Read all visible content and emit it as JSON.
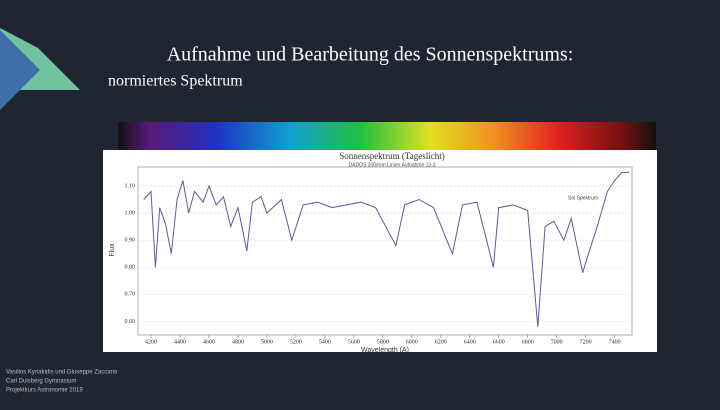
{
  "slide": {
    "title": "Aufnahme und Bearbeitung des Sonnenspektrums:",
    "subtitle": "normiertes Spektrum",
    "footer": [
      "Vasilios Kyriakidis und Giuseppe Zaccaria",
      "Carl Duisberg Gymnasium",
      "Projektkurs Astronomie 2019"
    ]
  },
  "chart_data": {
    "type": "line",
    "title": "Sonnenspektrum (Tageslicht)",
    "subtitle": "DADOS 300/mm Linien Aufnahme 13.3",
    "x_label": "Wavelength (A)",
    "y_label": "Flux",
    "annotation": "Sol Spektrum",
    "color": "#5a5aa0",
    "x": [
      4150,
      4200,
      4230,
      4260,
      4300,
      4340,
      4380,
      4420,
      4460,
      4500,
      4560,
      4600,
      4650,
      4700,
      4750,
      4800,
      4861,
      4900,
      4960,
      5000,
      5100,
      5172,
      5250,
      5350,
      5450,
      5550,
      5650,
      5750,
      5890,
      5950,
      6050,
      6150,
      6280,
      6350,
      6450,
      6563,
      6600,
      6700,
      6800,
      6870,
      6920,
      6980,
      7050,
      7100,
      7180,
      7220,
      7280,
      7350,
      7400,
      7450,
      7500
    ],
    "values": [
      1.05,
      1.08,
      0.8,
      1.02,
      0.96,
      0.85,
      1.05,
      1.12,
      1.0,
      1.08,
      1.04,
      1.1,
      1.03,
      1.06,
      0.95,
      1.02,
      0.86,
      1.04,
      1.06,
      1.0,
      1.05,
      0.9,
      1.03,
      1.04,
      1.02,
      1.03,
      1.04,
      1.02,
      0.88,
      1.03,
      1.05,
      1.02,
      0.85,
      1.03,
      1.04,
      0.8,
      1.02,
      1.03,
      1.01,
      0.58,
      0.95,
      0.97,
      0.9,
      0.98,
      0.78,
      0.85,
      0.95,
      1.08,
      1.12,
      1.15,
      1.15
    ],
    "xlim": [
      4110,
      7520
    ],
    "ylim": [
      0.55,
      1.17
    ],
    "xticks": [
      4200,
      4400,
      4600,
      4800,
      5000,
      5200,
      5400,
      5600,
      5800,
      6000,
      6200,
      6400,
      6600,
      6800,
      7000,
      7200,
      7400
    ],
    "yticks": [
      {
        "value": 0.6,
        "label": "0.60"
      },
      {
        "value": 0.7,
        "label": "0.70"
      },
      {
        "value": 0.8,
        "label": "0.80"
      },
      {
        "value": 0.9,
        "label": "0.90"
      },
      {
        "value": 1.0,
        "label": "1.00"
      },
      {
        "value": 1.1,
        "label": "1.10"
      }
    ],
    "grid": true
  }
}
